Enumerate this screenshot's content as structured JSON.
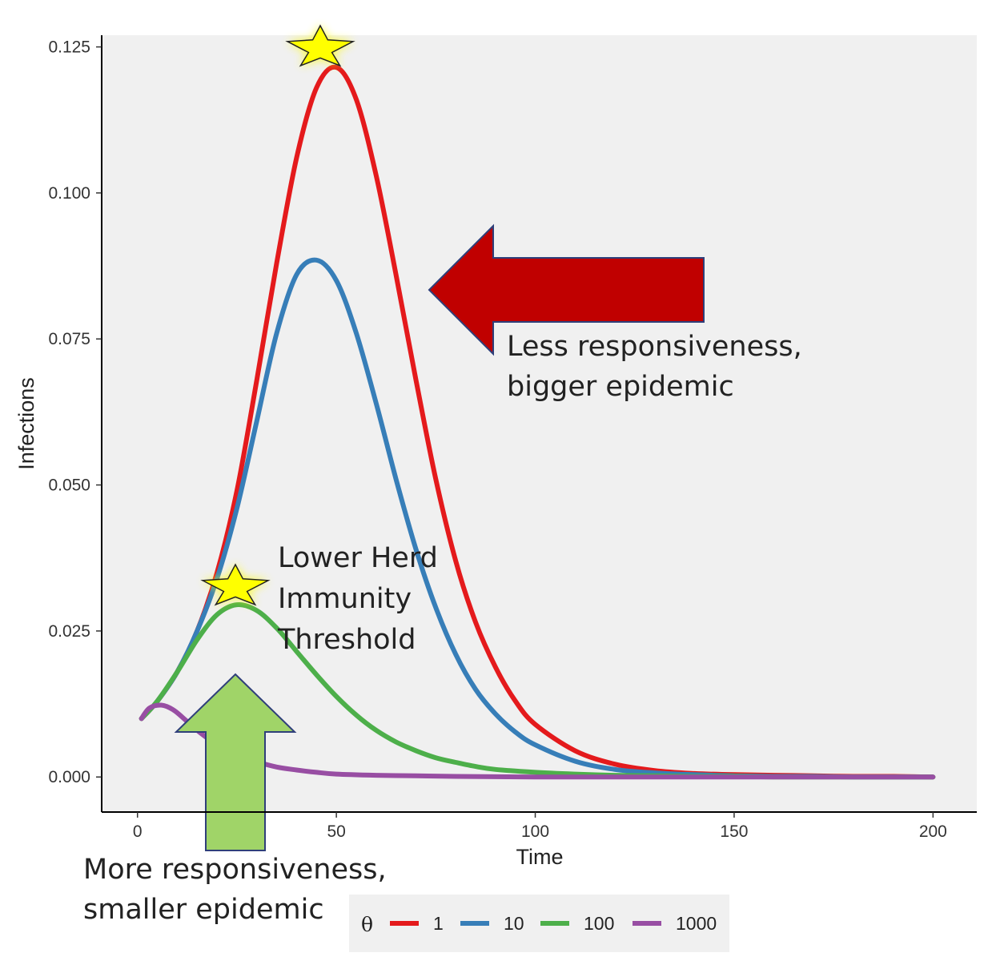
{
  "chart_data": {
    "type": "line",
    "xlabel": "Time",
    "ylabel": "Infections",
    "xlim": [
      -9,
      211
    ],
    "ylim": [
      -0.006,
      0.127
    ],
    "x_ticks": [
      0,
      50,
      100,
      150,
      200
    ],
    "x_tick_labels": [
      "0",
      "50",
      "100",
      "150",
      "200"
    ],
    "y_ticks": [
      0,
      0.025,
      0.05,
      0.075,
      0.1,
      0.125
    ],
    "y_tick_labels": [
      "0.000",
      "0.025",
      "0.050",
      "0.075",
      "0.100",
      "0.125"
    ],
    "grid": false,
    "legend": {
      "title": "θ",
      "position": "bottom"
    },
    "series": [
      {
        "name": "1",
        "color": "#e41a1c",
        "x": [
          1,
          5,
          10,
          15,
          20,
          25,
          30,
          35,
          40,
          45,
          50,
          55,
          60,
          65,
          70,
          75,
          80,
          85,
          90,
          95,
          100,
          110,
          120,
          130,
          140,
          150,
          160,
          170,
          180,
          190,
          200
        ],
        "y": [
          0.01,
          0.013,
          0.018,
          0.025,
          0.035,
          0.049,
          0.068,
          0.088,
          0.106,
          0.118,
          0.1215,
          0.116,
          0.103,
          0.086,
          0.068,
          0.051,
          0.037,
          0.0265,
          0.0188,
          0.013,
          0.009,
          0.0045,
          0.0022,
          0.0011,
          0.0006,
          0.0004,
          0.0003,
          0.0002,
          0.0001,
          0.0001,
          0.0
        ]
      },
      {
        "name": "10",
        "color": "#377eb8",
        "x": [
          1,
          5,
          10,
          15,
          20,
          25,
          30,
          35,
          40,
          45,
          50,
          55,
          60,
          65,
          70,
          75,
          80,
          85,
          90,
          95,
          100,
          110,
          120,
          130,
          140,
          150,
          160,
          170,
          180,
          190,
          200
        ],
        "y": [
          0.01,
          0.013,
          0.018,
          0.025,
          0.034,
          0.046,
          0.061,
          0.076,
          0.086,
          0.0885,
          0.085,
          0.076,
          0.064,
          0.051,
          0.039,
          0.029,
          0.021,
          0.015,
          0.0108,
          0.0077,
          0.0055,
          0.0027,
          0.0013,
          0.0007,
          0.0004,
          0.0002,
          0.0001,
          0.0001,
          0.0,
          0.0,
          0.0
        ]
      },
      {
        "name": "100",
        "color": "#4daf4a",
        "x": [
          1,
          5,
          10,
          15,
          20,
          25,
          30,
          35,
          40,
          45,
          50,
          55,
          60,
          65,
          70,
          75,
          80,
          85,
          90,
          100,
          110,
          120,
          130,
          140,
          150,
          160,
          170,
          180,
          190,
          200
        ],
        "y": [
          0.01,
          0.013,
          0.018,
          0.0235,
          0.0278,
          0.0295,
          0.0285,
          0.0255,
          0.0215,
          0.0175,
          0.0138,
          0.0106,
          0.008,
          0.006,
          0.0045,
          0.0033,
          0.0025,
          0.0018,
          0.0013,
          0.0008,
          0.0005,
          0.0003,
          0.0002,
          0.0001,
          0.0001,
          0.0,
          0.0,
          0.0,
          0.0,
          0.0
        ]
      },
      {
        "name": "1000",
        "color": "#984ea3",
        "x": [
          1,
          3,
          6,
          9,
          12,
          15,
          20,
          25,
          30,
          35,
          40,
          45,
          50,
          60,
          70,
          80,
          100,
          120,
          140,
          160,
          180,
          200
        ],
        "y": [
          0.01,
          0.0118,
          0.0123,
          0.0115,
          0.0098,
          0.008,
          0.0055,
          0.0038,
          0.0026,
          0.0017,
          0.0012,
          0.0008,
          0.0005,
          0.0003,
          0.0002,
          0.0001,
          0.0,
          0.0,
          0.0,
          0.0,
          0.0,
          0.0
        ]
      }
    ],
    "annotations": {
      "less": [
        "Less responsiveness,",
        "bigger epidemic"
      ],
      "lower": [
        "Lower Herd",
        "Immunity",
        "Threshold"
      ],
      "more": [
        "More responsiveness,",
        "smaller epidemic"
      ]
    },
    "arrow_colors": {
      "red_arrow": "#c00000",
      "green_arrow": "#a0d468"
    },
    "star_color": "#ffff00",
    "panel_background": "#f0f0f0"
  }
}
